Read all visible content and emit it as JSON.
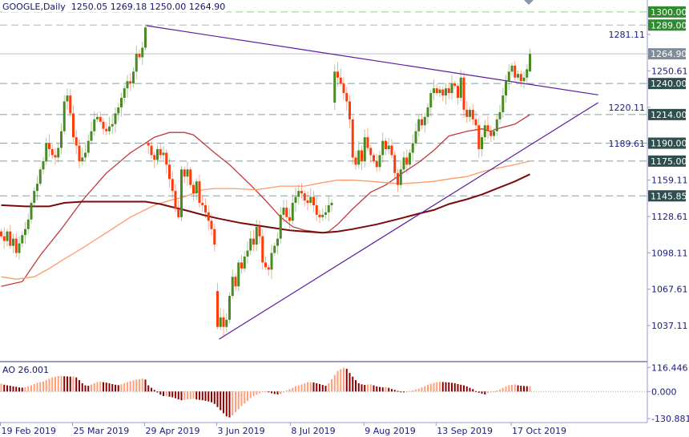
{
  "header": {
    "symbol_timeframe": "GOOGLE,Daily",
    "ohlc": "1250.05 1269.18 1250.00 1264.90"
  },
  "colors": {
    "bull": "#4a8a22",
    "bear": "#ff3b0a",
    "ma_fast": "#c0393b",
    "ma_mid": "#ff9a66",
    "ma_slow": "#7a0a0a",
    "trendline": "#5a1aa0",
    "label_green": "#2e8b2e",
    "label_dark": "#2f4f4f",
    "label_price": "#7f8c99",
    "ao_up": "#ffa07a",
    "ao_down": "#8b0000",
    "axis_text": "#1a1a80"
  },
  "chart_data": {
    "type": "candlestick",
    "title": "GOOGLE,Daily",
    "y_ticks": [
      "1281.11",
      "1250.61",
      "1220.11",
      "1189.61",
      "1159.11",
      "1128.61",
      "1098.11",
      "1067.61",
      "1037.11"
    ],
    "x_ticks": [
      {
        "label": "19 Feb 2019",
        "bar": 0
      },
      {
        "label": "25 Mar 2019",
        "bar": 24
      },
      {
        "label": "29 Apr 2019",
        "bar": 48
      },
      {
        "label": "3 Jun 2019",
        "bar": 72
      },
      {
        "label": "8 Jul 2019",
        "bar": 96.5
      },
      {
        "label": "9 Aug 2019",
        "bar": 121
      },
      {
        "label": "13 Sep 2019",
        "bar": 145
      },
      {
        "label": "17 Oct 2019",
        "bar": 170
      }
    ],
    "closes": [
      1112,
      1108,
      1116,
      1104,
      1110,
      1098,
      1106,
      1113,
      1118,
      1126,
      1140,
      1150,
      1156,
      1168,
      1175,
      1190,
      1185,
      1180,
      1178,
      1186,
      1200,
      1225,
      1230,
      1215,
      1195,
      1188,
      1175,
      1178,
      1182,
      1192,
      1200,
      1210,
      1212,
      1208,
      1202,
      1200,
      1204,
      1206,
      1215,
      1220,
      1228,
      1236,
      1242,
      1240,
      1250,
      1265,
      1262,
      1270,
      1287,
      1188,
      1180,
      1176,
      1185,
      1180,
      1182,
      1172,
      1160,
      1150,
      1135,
      1128,
      1168,
      1162,
      1168,
      1155,
      1148,
      1158,
      1140,
      1138,
      1132,
      1125,
      1118,
      1105,
      1036,
      1044,
      1036,
      1042,
      1062,
      1078,
      1070,
      1090,
      1085,
      1095,
      1100,
      1110,
      1105,
      1120,
      1112,
      1090,
      1086,
      1084,
      1098,
      1104,
      1110,
      1130,
      1136,
      1128,
      1125,
      1140,
      1145,
      1150,
      1148,
      1142,
      1140,
      1145,
      1138,
      1130,
      1128,
      1130,
      1132,
      1138,
      1140,
      1250,
      1245,
      1240,
      1232,
      1225,
      1210,
      1178,
      1172,
      1184,
      1175,
      1195,
      1186,
      1180,
      1175,
      1170,
      1180,
      1192,
      1185,
      1188,
      1180,
      1165,
      1155,
      1168,
      1178,
      1172,
      1182,
      1190,
      1200,
      1210,
      1205,
      1212,
      1220,
      1232,
      1236,
      1232,
      1235,
      1230,
      1236,
      1232,
      1240,
      1238,
      1228,
      1245,
      1218,
      1212,
      1218,
      1210,
      1205,
      1185,
      1195,
      1205,
      1200,
      1196,
      1200,
      1210,
      1216,
      1230,
      1242,
      1250,
      1255,
      1245,
      1248,
      1242,
      1245,
      1252,
      1264.9
    ],
    "gap_opens": {
      "49": 1190,
      "72": 1066,
      "111": 1224,
      "176": 1250.05
    },
    "last_bar": {
      "open": 1250.05,
      "high": 1269.18,
      "low": 1250.0,
      "close": 1264.9
    },
    "moving_averages": [
      {
        "role": "fast",
        "points": [
          [
            0,
            1070
          ],
          [
            7,
            1074
          ],
          [
            13,
            1096
          ],
          [
            20,
            1118
          ],
          [
            27,
            1142
          ],
          [
            35,
            1165
          ],
          [
            43,
            1182
          ],
          [
            48,
            1190
          ],
          [
            51,
            1195
          ],
          [
            56,
            1199
          ],
          [
            61,
            1199
          ],
          [
            64,
            1197
          ],
          [
            71,
            1182
          ],
          [
            76,
            1172
          ],
          [
            83,
            1155
          ],
          [
            88,
            1142
          ],
          [
            93,
            1128
          ],
          [
            97,
            1120
          ],
          [
            101,
            1117
          ],
          [
            107,
            1115
          ],
          [
            109,
            1116
          ],
          [
            112,
            1122
          ],
          [
            117,
            1135
          ],
          [
            123,
            1149
          ],
          [
            128,
            1155
          ],
          [
            133,
            1164
          ],
          [
            139,
            1174
          ],
          [
            144,
            1184
          ],
          [
            149,
            1196
          ],
          [
            155,
            1200
          ],
          [
            160,
            1202
          ],
          [
            163,
            1200
          ],
          [
            165,
            1202
          ],
          [
            171,
            1206
          ],
          [
            176,
            1214
          ]
        ]
      },
      {
        "role": "mid",
        "points": [
          [
            0,
            1078
          ],
          [
            5,
            1076
          ],
          [
            11,
            1078
          ],
          [
            16,
            1085
          ],
          [
            21,
            1093
          ],
          [
            27,
            1102
          ],
          [
            35,
            1115
          ],
          [
            43,
            1128
          ],
          [
            51,
            1138
          ],
          [
            56,
            1142
          ],
          [
            61,
            1145
          ],
          [
            67,
            1151
          ],
          [
            71,
            1152
          ],
          [
            77,
            1152
          ],
          [
            85,
            1151
          ],
          [
            93,
            1154
          ],
          [
            101,
            1154
          ],
          [
            107,
            1157
          ],
          [
            112,
            1159
          ],
          [
            117,
            1159
          ],
          [
            123,
            1158
          ],
          [
            128,
            1157
          ],
          [
            133,
            1156
          ],
          [
            139,
            1157
          ],
          [
            144,
            1158
          ],
          [
            149,
            1160
          ],
          [
            155,
            1162
          ],
          [
            160,
            1166
          ],
          [
            165,
            1169
          ],
          [
            171,
            1172
          ],
          [
            176,
            1175
          ]
        ]
      },
      {
        "role": "slow",
        "points": [
          [
            0,
            1138
          ],
          [
            8,
            1137
          ],
          [
            16,
            1137
          ],
          [
            21,
            1140
          ],
          [
            27,
            1141
          ],
          [
            43,
            1141
          ],
          [
            48,
            1141
          ],
          [
            53,
            1139
          ],
          [
            56,
            1137
          ],
          [
            61,
            1134
          ],
          [
            67,
            1130
          ],
          [
            72,
            1127
          ],
          [
            80,
            1123
          ],
          [
            88,
            1120
          ],
          [
            96,
            1117
          ],
          [
            101,
            1116
          ],
          [
            107,
            1115
          ],
          [
            112,
            1116
          ],
          [
            117,
            1118
          ],
          [
            125,
            1122
          ],
          [
            133,
            1127
          ],
          [
            139,
            1131
          ],
          [
            144,
            1134
          ],
          [
            149,
            1139
          ],
          [
            155,
            1143
          ],
          [
            160,
            1147
          ],
          [
            165,
            1152
          ],
          [
            171,
            1158
          ],
          [
            176,
            1164
          ]
        ]
      }
    ],
    "trendlines": [
      {
        "role": "resistance",
        "points": [
          [
            48.3,
            1288.5
          ],
          [
            198.7,
            1230.5
          ]
        ]
      },
      {
        "role": "support",
        "points": [
          [
            72.5,
            1025.7
          ],
          [
            198.7,
            1224
          ]
        ]
      }
    ],
    "horizontal_levels": [
      {
        "label": "1300.00",
        "value": 1300.0,
        "style": "green"
      },
      {
        "label": "1289.00",
        "value": 1289.0,
        "style": "green"
      },
      {
        "label": "1264.90",
        "value": 1264.9,
        "style": "price"
      },
      {
        "label": "1240.00",
        "value": 1240.0,
        "style": "dark"
      },
      {
        "label": "1214.00",
        "value": 1214.0,
        "style": "dark"
      },
      {
        "label": "1190.00",
        "value": 1190.0,
        "style": "dark"
      },
      {
        "label": "1175.00",
        "value": 1175.0,
        "style": "dark"
      },
      {
        "label": "1145.85",
        "value": 1145.85,
        "style": "dark"
      }
    ],
    "indicator": {
      "name": "AO",
      "label": "AO 26.001",
      "y_ticks": [
        "116.446",
        "0.000",
        "-130.881"
      ],
      "ylim": [
        -130.881,
        116.446
      ],
      "values": [
        38,
        33,
        30,
        28,
        25,
        23,
        20,
        19,
        22,
        26,
        30,
        36,
        42,
        45,
        48,
        55,
        62,
        68,
        72,
        75,
        76,
        74,
        73,
        72,
        73,
        68,
        55,
        40,
        30,
        28,
        34,
        40,
        46,
        48,
        45,
        43,
        40,
        36,
        33,
        31,
        35,
        40,
        45,
        50,
        54,
        58,
        60,
        62,
        58,
        30,
        18,
        8,
        -5,
        -15,
        -22,
        -22,
        -25,
        -28,
        -32,
        -38,
        -42,
        -40,
        -38,
        -36,
        -35,
        -38,
        -40,
        -42,
        -45,
        -48,
        -52,
        -60,
        -75,
        -90,
        -105,
        -120,
        -125,
        -115,
        -100,
        -85,
        -70,
        -58,
        -45,
        -32,
        -22,
        -15,
        -8,
        -3,
        0,
        -3,
        -8,
        -12,
        -14,
        -12,
        -5,
        5,
        12,
        18,
        25,
        30,
        35,
        40,
        45,
        45,
        44,
        40,
        36,
        32,
        28,
        40,
        60,
        80,
        100,
        108,
        115,
        110,
        90,
        72,
        55,
        40,
        35,
        32,
        34,
        35,
        30,
        25,
        22,
        20,
        22,
        18,
        12,
        8,
        3,
        -2,
        -4,
        -2,
        3,
        6,
        10,
        14,
        20,
        26,
        33,
        38,
        42,
        45,
        48,
        46,
        45,
        44,
        42,
        40,
        36,
        33,
        30,
        25,
        18,
        12,
        2,
        -6,
        -10,
        -14,
        -8,
        -4,
        0,
        5,
        10,
        18,
        25,
        30,
        32,
        34,
        30,
        28,
        27,
        26,
        26.001
      ]
    }
  }
}
